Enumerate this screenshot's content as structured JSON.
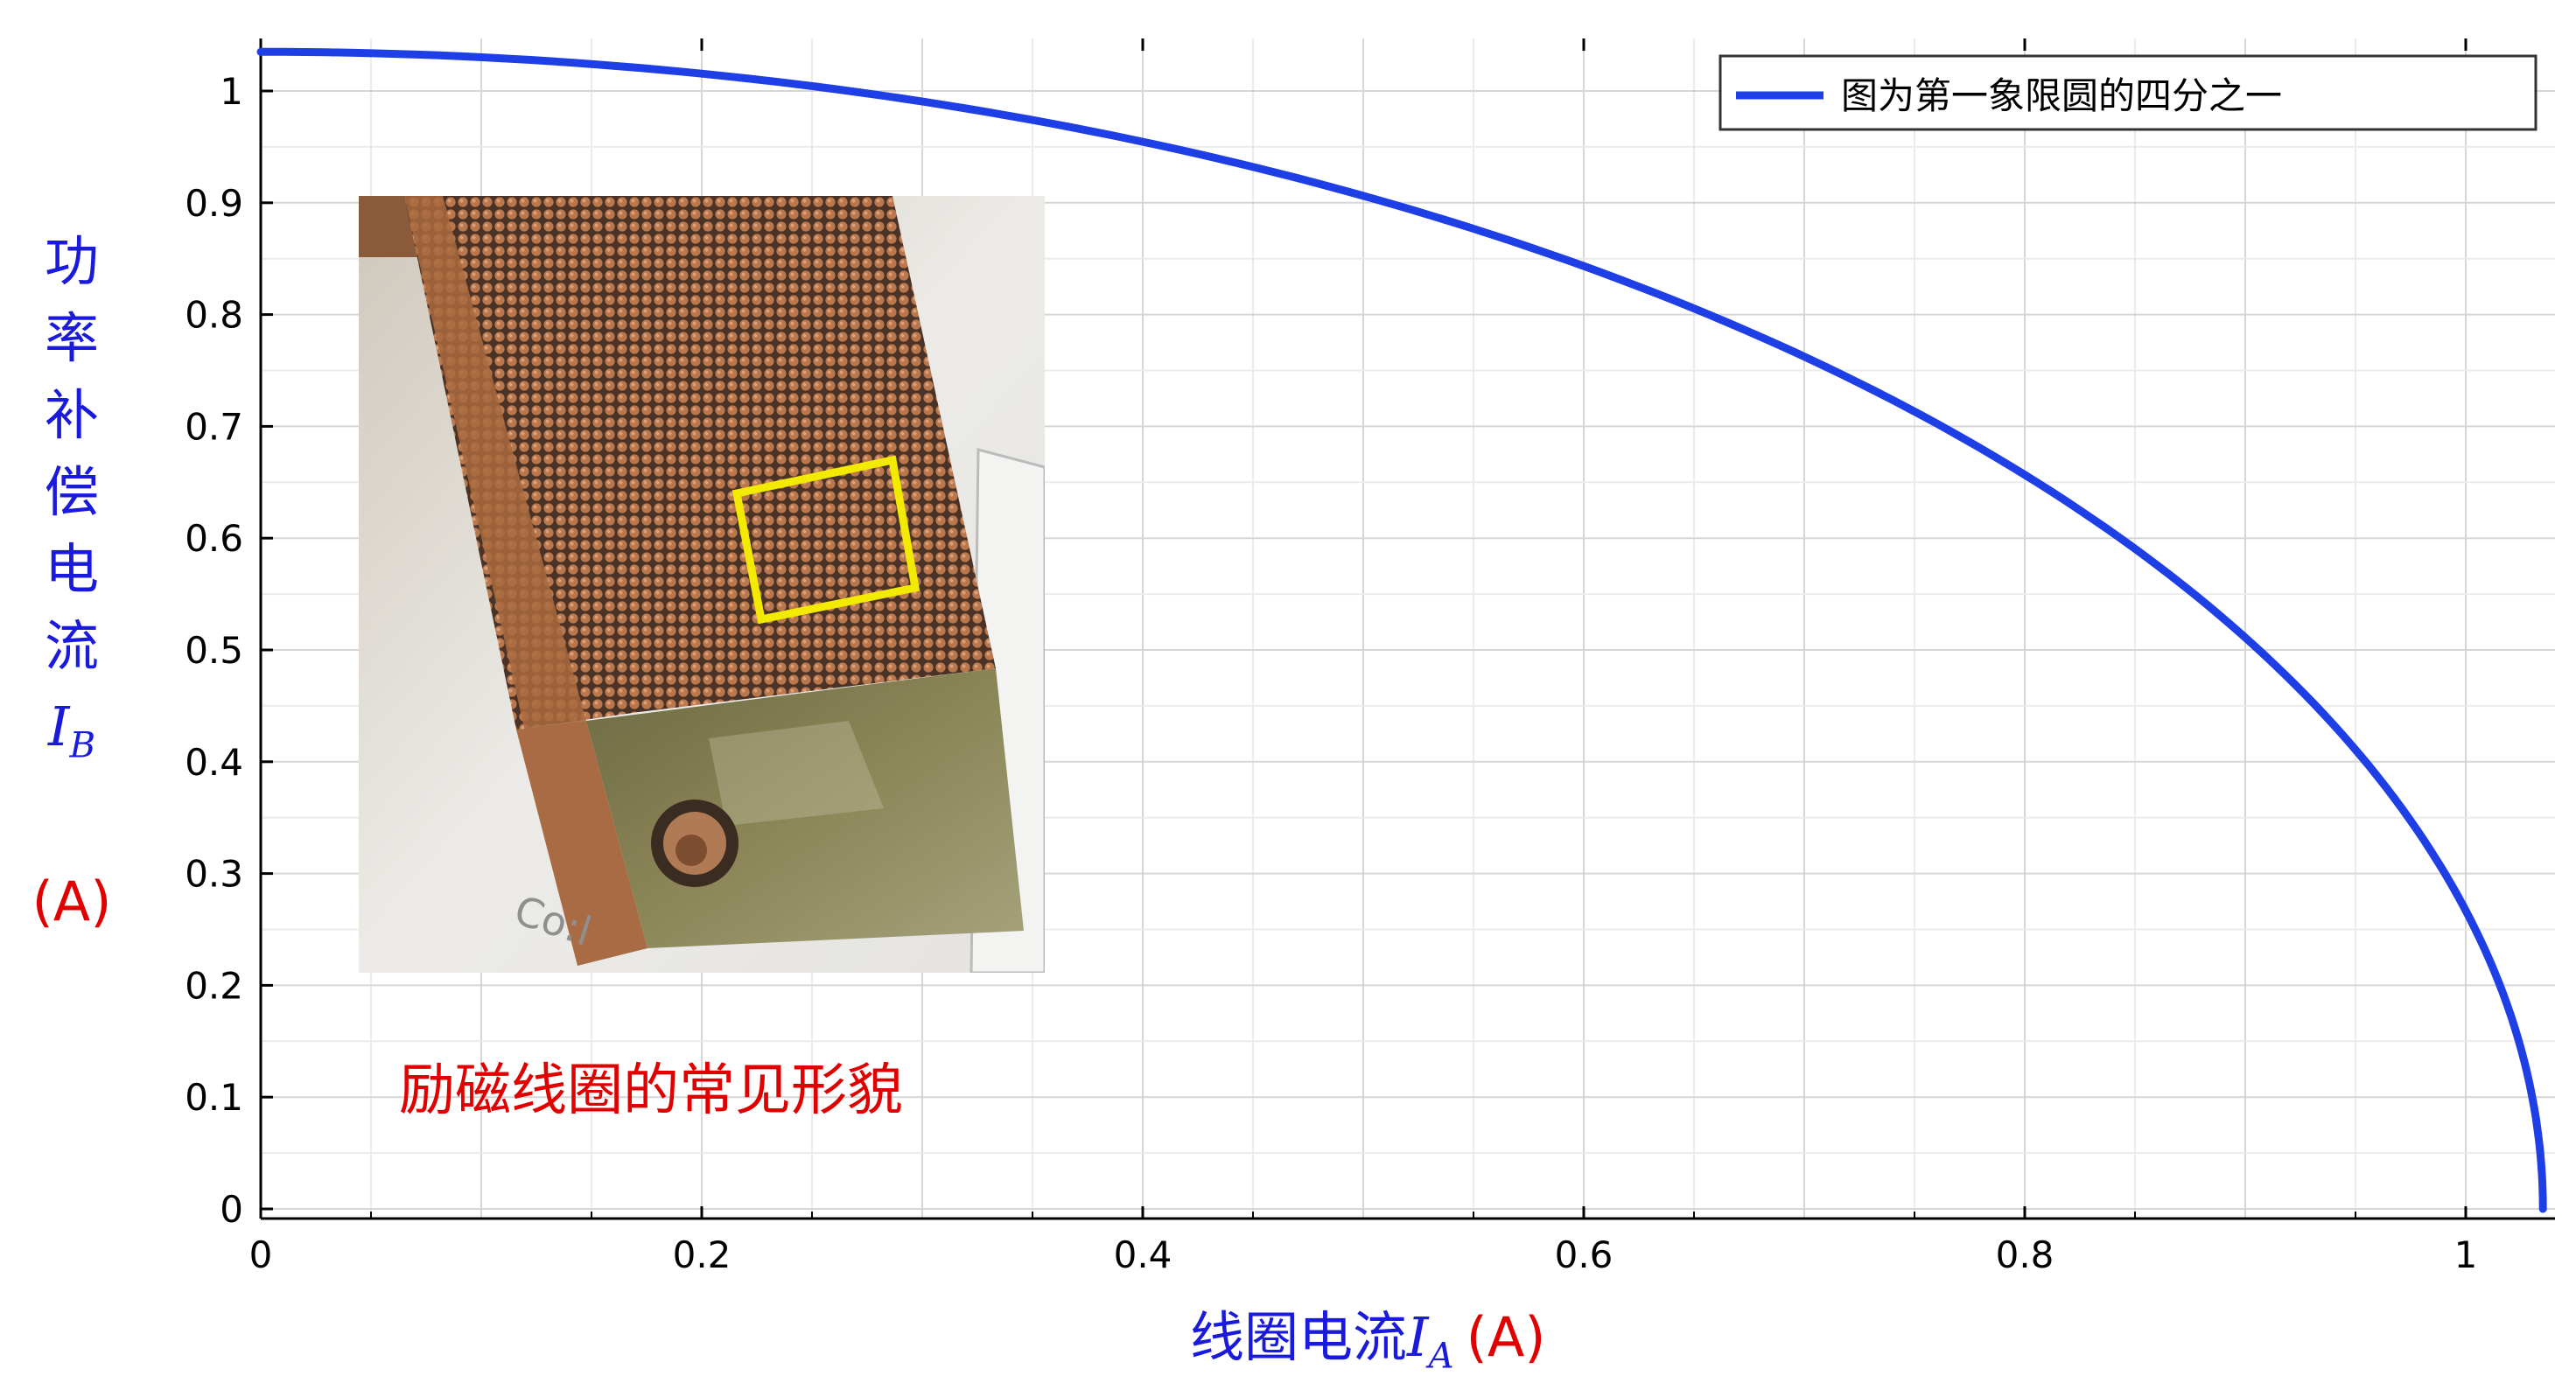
{
  "chart_data": {
    "type": "line",
    "title": "",
    "xlabel": {
      "text": "线圈电流",
      "symbol": "I",
      "subscript": "A",
      "unit": "(A)"
    },
    "ylabel": {
      "chars": [
        "功",
        "率",
        "补",
        "偿",
        "电",
        "流"
      ],
      "symbol": "I",
      "subscript": "B",
      "unit": "(A)"
    },
    "xlim": [
      0,
      1.035
    ],
    "ylim": [
      0,
      1.035
    ],
    "xticks": [
      0,
      0.2,
      0.4,
      0.6,
      0.8,
      1
    ],
    "xtick_labels": [
      "0",
      "0.2",
      "0.4",
      "0.6",
      "0.8",
      "1"
    ],
    "yticks": [
      0,
      0.1,
      0.2,
      0.3,
      0.4,
      0.5,
      0.6,
      0.7,
      0.8,
      0.9,
      1
    ],
    "ytick_labels": [
      "0",
      "0.1",
      "0.2",
      "0.3",
      "0.4",
      "0.5",
      "0.6",
      "0.7",
      "0.8",
      "0.9",
      "1"
    ],
    "grid": true,
    "legend_position": "top-right",
    "series": [
      {
        "name": "图为第一象限圆的四分之一",
        "color": "#1f3fe6",
        "x": [
          0,
          0.1,
          0.2,
          0.3,
          0.4,
          0.5,
          0.6,
          0.7,
          0.8,
          0.9,
          0.95,
          1.0,
          1.02,
          1.035
        ],
        "y": [
          1.035,
          1.03,
          1.016,
          0.991,
          0.955,
          0.906,
          0.843,
          0.762,
          0.657,
          0.511,
          0.411,
          0.267,
          0.176,
          0.0
        ]
      }
    ]
  },
  "inset": {
    "photo_caption": "励磁线圈的常见形貌",
    "photo_label": "Co:l"
  }
}
